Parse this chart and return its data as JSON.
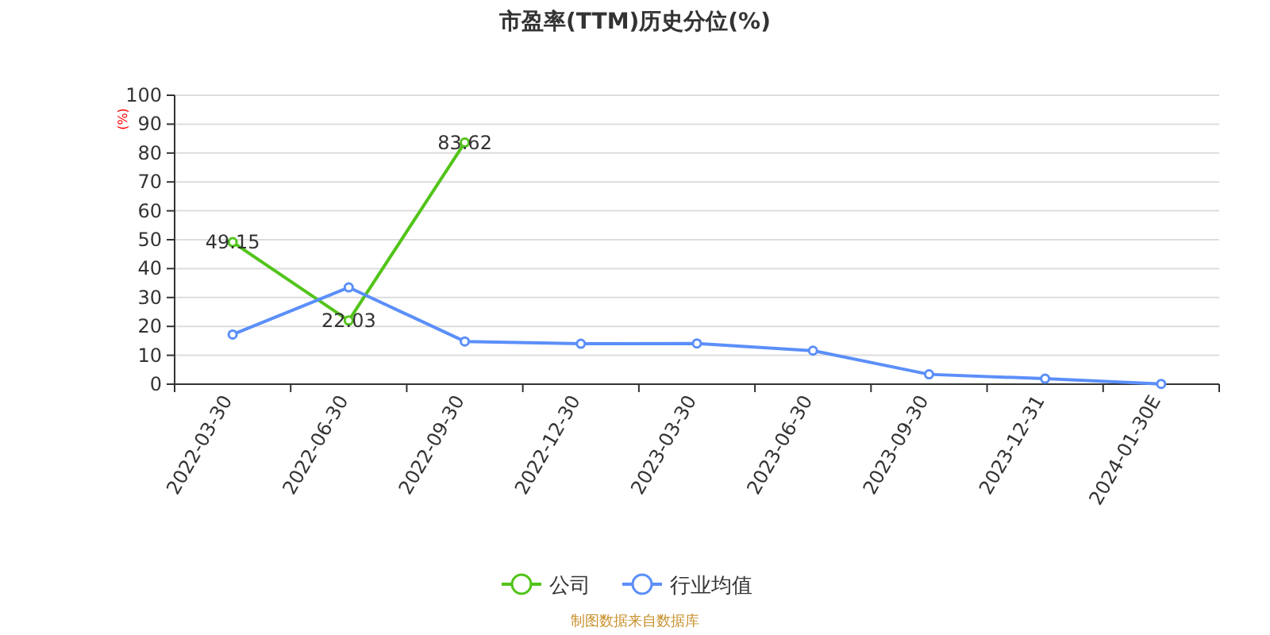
{
  "chart_data": {
    "type": "line",
    "title": "市盈率(TTM)历史分位(%)",
    "ylabel": "(%)",
    "categories": [
      "2022-03-30",
      "2022-06-30",
      "2022-09-30",
      "2022-12-30",
      "2023-03-30",
      "2023-06-30",
      "2023-09-30",
      "2023-12-31",
      "2024-01-30E"
    ],
    "series": [
      {
        "name": "公司",
        "color": "#52c41a",
        "values": [
          49.15,
          22.03,
          83.62,
          null,
          null,
          null,
          null,
          null,
          null
        ],
        "value_labels": [
          "49.15",
          "22.03",
          "83.62",
          null,
          null,
          null,
          null,
          null,
          null
        ]
      },
      {
        "name": "行业均值",
        "color": "#5b8ff9",
        "values": [
          17.2,
          33.5,
          14.8,
          14.0,
          14.1,
          11.6,
          3.4,
          1.9,
          0.1
        ]
      }
    ],
    "ylim": [
      0,
      100
    ],
    "yticks": [
      0,
      10,
      20,
      30,
      40,
      50,
      60,
      70,
      80,
      90,
      100
    ],
    "grid": "y",
    "legend": "bottom",
    "marker": "circle",
    "line_style": "solid",
    "annotations": [
      "制图数据来自数据库"
    ]
  }
}
